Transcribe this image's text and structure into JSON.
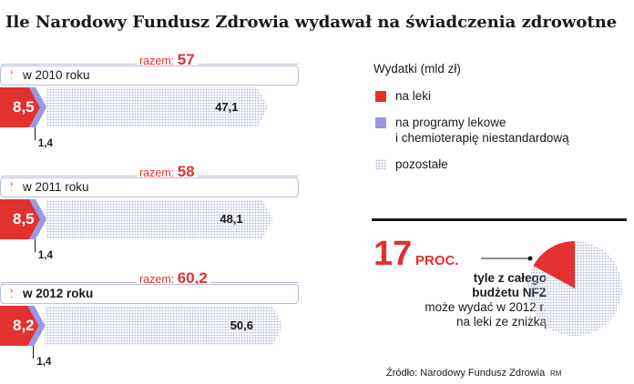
{
  "title": "Ile Narodowy Fundusz Zdrowia wydawał na świadczenia zdrowotne",
  "legend": {
    "title": "Wydatki (mld zł)",
    "items": [
      {
        "label": "na leki",
        "color": "#e2312f"
      },
      {
        "label_line1": "na programy lekowe",
        "label_line2": "i chemioterapię niestandardową",
        "color": "#9b96e6"
      },
      {
        "label": "pozostałe",
        "color": "#b9bfd8"
      }
    ]
  },
  "chart_data": {
    "type": "bar",
    "orientation": "horizontal",
    "stacked": true,
    "unit": "mld zł",
    "categories": [
      "w 2010 roku",
      "w 2011 roku",
      "w 2012 roku"
    ],
    "series": [
      {
        "name": "na leki",
        "values": [
          8.5,
          8.5,
          8.2
        ],
        "labels": [
          "8,5",
          "8,5",
          "8,2"
        ]
      },
      {
        "name": "na programy lekowe i chemioterapię niestandardową",
        "values": [
          1.4,
          1.4,
          1.4
        ],
        "labels": [
          "1,4",
          "1,4",
          "1,4"
        ]
      },
      {
        "name": "pozostałe",
        "values": [
          47.1,
          48.1,
          50.6
        ],
        "labels": [
          "47,1",
          "48,1",
          "50,6"
        ]
      }
    ],
    "totals": {
      "prefix": "razem:",
      "values": [
        57,
        58,
        60.2
      ],
      "labels": [
        "57",
        "58",
        "60,2"
      ]
    }
  },
  "highlight": {
    "number": "17",
    "unit": "PROC.",
    "line1": "tyle z całego",
    "line2": "budżetu NFZ",
    "line3": "może wydać w 2012 r.",
    "line4": "na leki ze zniżką",
    "pie_share": 0.17
  },
  "source": "Źródło: Narodowy Fundusz Zdrowia",
  "author": "RM"
}
